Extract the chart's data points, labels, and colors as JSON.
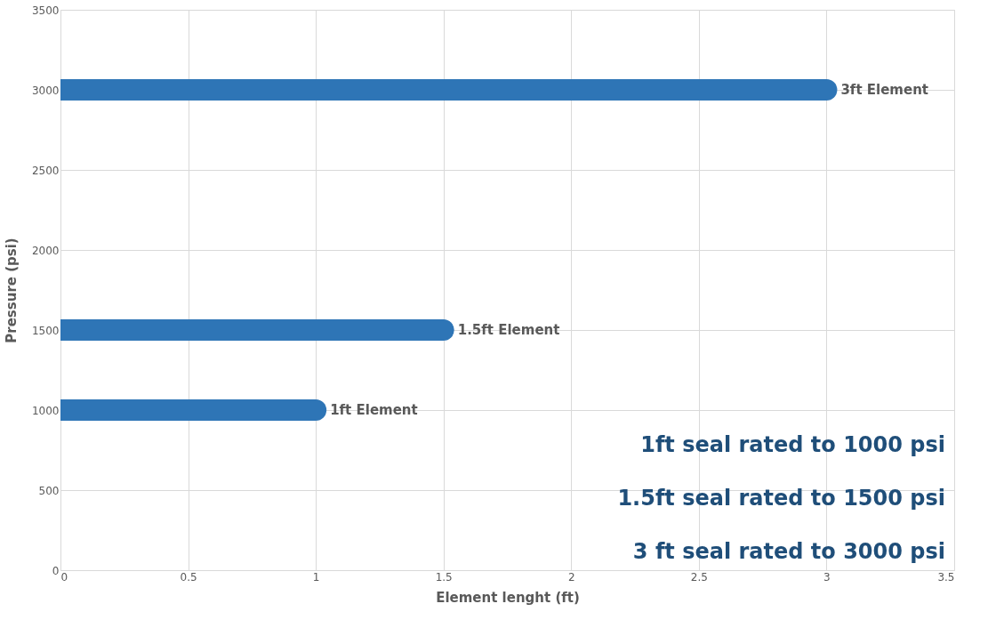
{
  "chart_data": {
    "type": "line",
    "xlabel": "Element lenght (ft)",
    "ylabel": "Pressure (psi)",
    "xlim": [
      0,
      3.5
    ],
    "xticks": [
      0,
      0.5,
      1,
      1.5,
      2,
      2.5,
      3,
      3.5
    ],
    "ylim": [
      0,
      3500
    ],
    "yticks": [
      0,
      500,
      1000,
      1500,
      2000,
      2500,
      3000,
      3500
    ],
    "grid": true,
    "marker": "none",
    "line_style": "solid",
    "series": [
      {
        "name": "1ft Element",
        "color": "#2e75b6",
        "x": [
          0,
          1
        ],
        "values": [
          1000,
          1000
        ]
      },
      {
        "name": "1.5ft Element",
        "color": "#2e75b6",
        "x": [
          0,
          1.5
        ],
        "values": [
          1500,
          1500
        ]
      },
      {
        "name": "3ft Element",
        "color": "#2e75b6",
        "x": [
          0,
          3
        ],
        "values": [
          3000,
          3000
        ]
      }
    ],
    "annotations": [
      "1ft seal rated to 1000 psi",
      "1.5ft seal rated to 1500 psi",
      "3 ft seal rated to 3000 psi"
    ]
  }
}
